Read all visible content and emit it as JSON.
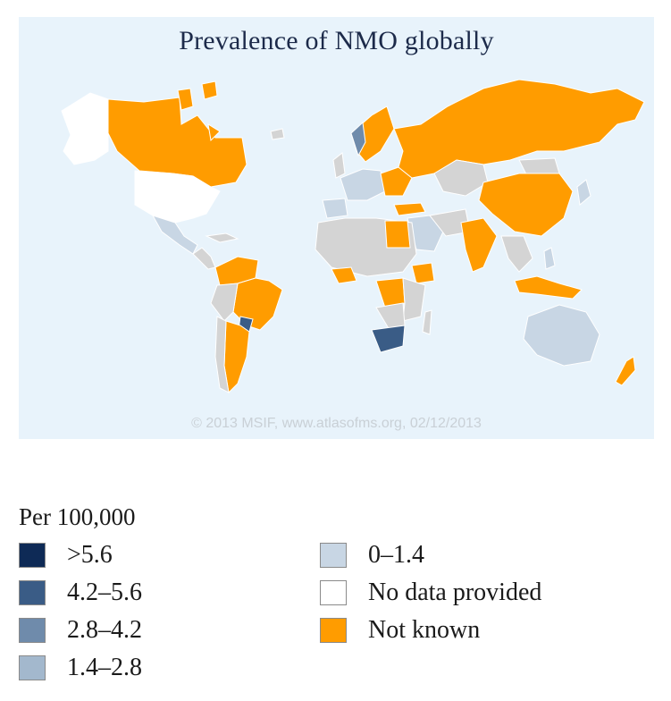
{
  "map": {
    "title": "Prevalence of NMO globally",
    "copyright": "© 2013 MSIF, www.atlasofms.org, 02/12/2013",
    "colors": {
      "ocean": "#e8f3fb",
      "grey": "#d4d4d4",
      "border": "#ffffff"
    }
  },
  "legend": {
    "title": "Per 100,000",
    "items": [
      {
        "label": ">5.6",
        "color": "#0e2a56"
      },
      {
        "label": "4.2–5.6",
        "color": "#3a5c86"
      },
      {
        "label": "2.8–4.2",
        "color": "#6f8bab"
      },
      {
        "label": "1.4–2.8",
        "color": "#a3b8cd"
      },
      {
        "label": "0–1.4",
        "color": "#c8d6e4"
      },
      {
        "label": "No data provided",
        "color": "#ffffff"
      },
      {
        "label": "Not known",
        "color": "#ff9c00"
      }
    ]
  }
}
